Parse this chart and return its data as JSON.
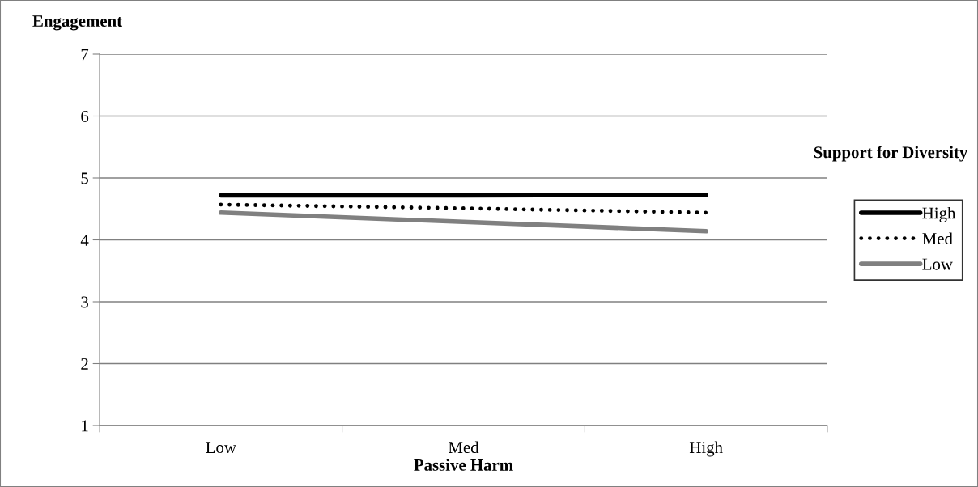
{
  "chart_data": {
    "type": "line",
    "xlabel": "Passive Harm",
    "ylabel": "Engagement",
    "legend_title": "Support for Diversity",
    "categories": [
      "Low",
      "Med",
      "High"
    ],
    "series": [
      {
        "name": "High",
        "color": "#000000",
        "line_style": "solid",
        "values": [
          4.72,
          4.72,
          4.73
        ]
      },
      {
        "name": "Med",
        "color": "#000000",
        "line_style": "dotted",
        "values": [
          4.57,
          4.51,
          4.44
        ]
      },
      {
        "name": "Low",
        "color": "#808080",
        "line_style": "solid",
        "values": [
          4.44,
          4.29,
          4.14
        ]
      }
    ],
    "ylim": [
      1,
      7
    ],
    "yticks": [
      1,
      2,
      3,
      4,
      5,
      6,
      7
    ],
    "grid": "y",
    "legend": "right",
    "marker": "none"
  }
}
